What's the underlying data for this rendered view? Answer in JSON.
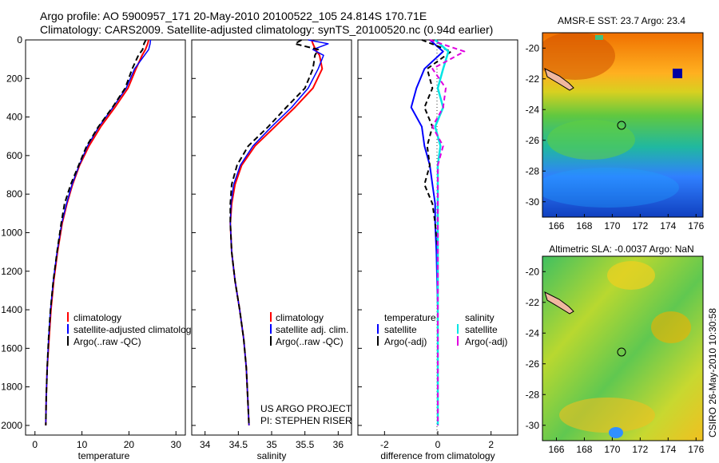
{
  "header": {
    "line1": "Argo profile: AO 5900957_171 20-May-2010 20100522_105 24.814S 170.71E",
    "line2": "Climatology: CARS2009. Satellite-adjusted climatology: synTS_20100520.nc (0.94d earlier)"
  },
  "side_label": "CSIRO 26-May-2010 10:30:58",
  "project": {
    "line1": "US ARGO PROJECT",
    "line2": "PI: STEPHEN RISER"
  },
  "colors": {
    "climatology": "#ff0000",
    "satellite": "#0000ff",
    "argo": "#000000",
    "sat_salinity": "#00e5e5",
    "argo_salinity": "#e000e0"
  },
  "chart_data": [
    {
      "type": "line",
      "name": "temperature-profile",
      "xlabel": "temperature",
      "ylabel": "",
      "xlim": [
        -2,
        32
      ],
      "ylim": [
        2050,
        0
      ],
      "xticks": [
        0,
        10,
        20,
        30
      ],
      "yticks": [
        0,
        200,
        400,
        600,
        800,
        1000,
        1200,
        1400,
        1600,
        1800,
        2000
      ],
      "legend": [
        "climatology",
        "satellite-adjusted climatology",
        "Argo(..raw -QC)"
      ],
      "series": [
        {
          "name": "climatology",
          "x": [
            24.2,
            24.0,
            23.5,
            22.8,
            21.5,
            19.8,
            17.0,
            14.0,
            11.5,
            9.5,
            8.0,
            6.8,
            5.8,
            4.8,
            4.0,
            3.4,
            3.0,
            2.6,
            2.4,
            2.3
          ],
          "y": [
            0,
            20,
            50,
            80,
            150,
            250,
            350,
            450,
            550,
            650,
            750,
            850,
            950,
            1100,
            1250,
            1400,
            1550,
            1700,
            1850,
            2000
          ]
        },
        {
          "name": "satellite",
          "x": [
            24.6,
            24.5,
            24.2,
            23.3,
            21.2,
            19.4,
            16.6,
            13.6,
            11.2,
            9.4,
            7.9,
            6.7,
            5.7,
            4.7,
            3.9,
            3.3,
            2.9,
            2.6,
            2.4,
            2.3
          ],
          "y": [
            0,
            20,
            50,
            80,
            150,
            250,
            350,
            450,
            550,
            650,
            750,
            850,
            950,
            1100,
            1250,
            1400,
            1550,
            1700,
            1850,
            2000
          ]
        },
        {
          "name": "argo",
          "x": [
            23.6,
            23.2,
            22.9,
            22.0,
            20.7,
            19.2,
            16.5,
            13.5,
            11.0,
            9.3,
            7.6,
            6.3,
            5.6,
            4.7,
            3.9,
            3.3,
            2.9,
            2.6,
            2.4,
            2.3
          ],
          "y": [
            0,
            20,
            50,
            80,
            150,
            250,
            350,
            450,
            550,
            650,
            750,
            850,
            950,
            1100,
            1250,
            1400,
            1550,
            1700,
            1850,
            2000
          ]
        }
      ]
    },
    {
      "type": "line",
      "name": "salinity-profile",
      "xlabel": "salinity",
      "ylabel": "",
      "xlim": [
        33.8,
        36.2
      ],
      "ylim": [
        2050,
        0
      ],
      "xticks": [
        34,
        34.5,
        35,
        35.5,
        36
      ],
      "legend": [
        "climatology",
        "satellite adj. clim.",
        "Argo(..raw -QC)"
      ],
      "series": [
        {
          "name": "climatology",
          "x": [
            35.6,
            35.62,
            35.66,
            35.72,
            35.76,
            35.62,
            35.35,
            35.05,
            34.75,
            34.55,
            34.45,
            34.4,
            34.38,
            34.4,
            34.45,
            34.52,
            34.58,
            34.62,
            34.64,
            34.66
          ],
          "y": [
            0,
            20,
            50,
            80,
            150,
            250,
            350,
            450,
            550,
            650,
            750,
            850,
            950,
            1100,
            1250,
            1400,
            1550,
            1700,
            1850,
            2000
          ]
        },
        {
          "name": "satellite",
          "x": [
            35.55,
            35.85,
            35.62,
            35.78,
            35.7,
            35.55,
            35.3,
            35.0,
            34.72,
            34.53,
            34.43,
            34.39,
            34.38,
            34.4,
            34.45,
            34.52,
            34.58,
            34.62,
            34.64,
            34.66
          ],
          "y": [
            0,
            20,
            50,
            80,
            150,
            250,
            350,
            450,
            550,
            650,
            750,
            850,
            950,
            1100,
            1250,
            1400,
            1550,
            1700,
            1850,
            2000
          ]
        },
        {
          "name": "argo",
          "x": [
            35.45,
            35.35,
            35.7,
            35.65,
            35.62,
            35.5,
            35.22,
            34.95,
            34.65,
            34.48,
            34.4,
            34.38,
            34.38,
            34.4,
            34.45,
            34.52,
            34.58,
            34.62,
            34.64,
            34.66
          ],
          "y": [
            0,
            20,
            50,
            80,
            150,
            250,
            350,
            450,
            550,
            650,
            750,
            850,
            950,
            1100,
            1250,
            1400,
            1550,
            1700,
            1850,
            2000
          ]
        }
      ]
    },
    {
      "type": "line",
      "name": "difference-profile",
      "xlabel": "difference from climatology",
      "ylabel": "",
      "xlim": [
        -3,
        3
      ],
      "ylim": [
        2050,
        0
      ],
      "xticks": [
        -2,
        0,
        2
      ],
      "legend_groups": [
        {
          "title": "temperature",
          "entries": [
            "satellite",
            "Argo(-adj)"
          ]
        },
        {
          "title": "salinity",
          "entries": [
            "satellite",
            "Argo(-adj)"
          ]
        }
      ],
      "series": [
        {
          "name": "temperature satellite",
          "x": [
            -0.3,
            0.2,
            -0.5,
            -0.8,
            -1.0,
            -0.6,
            -0.5,
            -0.3,
            -0.2,
            -0.1,
            -0.1,
            -0.05,
            0,
            0,
            0
          ],
          "y": [
            0,
            60,
            150,
            250,
            350,
            450,
            550,
            650,
            750,
            850,
            950,
            1100,
            1400,
            1700,
            2000
          ]
        },
        {
          "name": "temperature argo",
          "x": [
            -0.6,
            0.5,
            -0.4,
            -0.2,
            -0.5,
            -0.2,
            -0.4,
            -0.3,
            -0.5,
            -0.2,
            -0.1,
            0,
            0,
            0,
            0
          ],
          "y": [
            0,
            60,
            150,
            250,
            350,
            450,
            550,
            650,
            750,
            850,
            950,
            1100,
            1400,
            1700,
            2000
          ]
        },
        {
          "name": "salinity satellite",
          "x": [
            -0.1,
            0.4,
            0.2,
            0.0,
            0.2,
            -0.1,
            0.1,
            0.0,
            0.0,
            0.0,
            0.0,
            0.0,
            0.0,
            0.0,
            0.0
          ],
          "y": [
            0,
            60,
            150,
            250,
            350,
            450,
            550,
            650,
            750,
            850,
            950,
            1100,
            1400,
            1700,
            2000
          ]
        },
        {
          "name": "salinity argo",
          "x": [
            -0.3,
            1.0,
            -0.2,
            0.3,
            0.2,
            -0.2,
            0.2,
            0.0,
            0.0,
            0.0,
            0.0,
            0.0,
            0.0,
            0.0,
            0.0
          ],
          "y": [
            0,
            60,
            150,
            250,
            350,
            450,
            550,
            650,
            750,
            850,
            950,
            1100,
            1400,
            1700,
            2000
          ]
        }
      ]
    },
    {
      "type": "heatmap",
      "name": "amsr-sst-map",
      "title": "AMSR-E SST: 23.7 Argo: 23.4",
      "xlim": [
        165,
        176.5
      ],
      "ylim": [
        -31,
        -19
      ],
      "xticks": [
        166,
        168,
        170,
        172,
        174,
        176
      ],
      "yticks": [
        -20,
        -22,
        -24,
        -26,
        -28,
        -30
      ],
      "float_position": {
        "lon": 170.71,
        "lat": -24.814
      }
    },
    {
      "type": "heatmap",
      "name": "altimetric-sla-map",
      "title": "Altimetric SLA: -0.0037 Argo: NaN",
      "xlim": [
        165,
        176.5
      ],
      "ylim": [
        -31,
        -19
      ],
      "xticks": [
        166,
        168,
        170,
        172,
        174,
        176
      ],
      "yticks": [
        -20,
        -22,
        -24,
        -26,
        -28,
        -30
      ],
      "float_position": {
        "lon": 170.71,
        "lat": -24.814
      }
    }
  ]
}
